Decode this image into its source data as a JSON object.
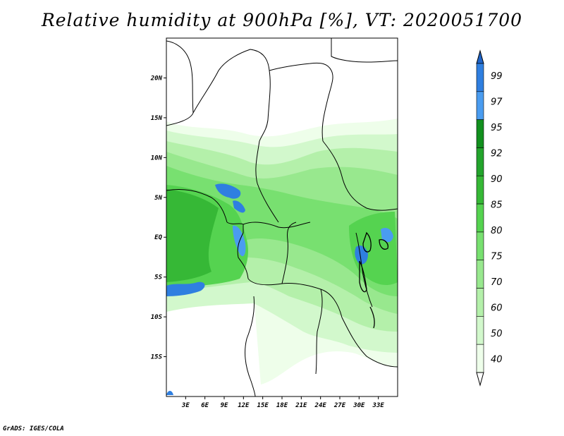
{
  "title": "Relative humidity at 900hPa [%], VT: 2020051700",
  "credit": "GrADS: IGES/COLA",
  "map": {
    "lon_range": [
      0,
      36
    ],
    "lat_range": [
      -20,
      25
    ],
    "lon_ticks": [
      "3E",
      "6E",
      "9E",
      "12E",
      "15E",
      "18E",
      "21E",
      "24E",
      "27E",
      "30E",
      "33E"
    ],
    "lat_ticks": [
      "20N",
      "15N",
      "10N",
      "5N",
      "EQ",
      "5S",
      "10S",
      "15S"
    ]
  },
  "colorbar": {
    "levels": [
      "99",
      "97",
      "95",
      "92",
      "90",
      "85",
      "80",
      "75",
      "70",
      "60",
      "50",
      "40"
    ],
    "colors": [
      "#1f64c8",
      "#2f7fe0",
      "#4a9cf0",
      "#12901e",
      "#23a42c",
      "#36b836",
      "#55d350",
      "#78e070",
      "#98e88e",
      "#b4f0aa",
      "#d2f8cc",
      "#eefeea",
      "#ffffff"
    ]
  }
}
